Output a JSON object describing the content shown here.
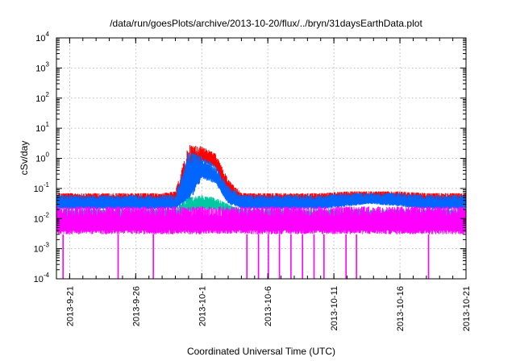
{
  "chart_data": {
    "type": "line",
    "title": "/data/run/goesPlots/archive/2013-10-20/flux/../bryn/31daysEarthData.plot",
    "xlabel": "Coordinated Universal Time (UTC)",
    "ylabel": "cSv/day",
    "yscale": "log",
    "ylim": [
      0.0001,
      10000
    ],
    "xlim": [
      "2013-09-20",
      "2013-10-21"
    ],
    "grid": true,
    "legend": "none",
    "y_ticks": [
      {
        "base": "10",
        "exp": "-4"
      },
      {
        "base": "10",
        "exp": "-3"
      },
      {
        "base": "10",
        "exp": "-2"
      },
      {
        "base": "10",
        "exp": "-1"
      },
      {
        "base": "10",
        "exp": "0"
      },
      {
        "base": "10",
        "exp": "1"
      },
      {
        "base": "10",
        "exp": "2"
      },
      {
        "base": "10",
        "exp": "3"
      },
      {
        "base": "10",
        "exp": "4"
      }
    ],
    "x_ticks": [
      {
        "label": "2013-9-21",
        "date": "2013-09-21"
      },
      {
        "label": "2013-9-26",
        "date": "2013-09-26"
      },
      {
        "label": "2013-10-1",
        "date": "2013-10-01"
      },
      {
        "label": "2013-10-6",
        "date": "2013-10-06"
      },
      {
        "label": "2013-10-11",
        "date": "2013-10-11"
      },
      {
        "label": "2013-10-16",
        "date": "2013-10-16"
      },
      {
        "label": "2013-10-21",
        "date": "2013-10-21"
      }
    ],
    "series": [
      {
        "color": "#ff0000",
        "x": [
          "2013-09-20",
          "2013-09-22",
          "2013-09-24",
          "2013-09-26",
          "2013-09-28",
          "2013-09-29",
          "2013-09-30",
          "2013-10-01",
          "2013-10-02",
          "2013-10-03",
          "2013-10-04",
          "2013-10-06",
          "2013-10-08",
          "2013-10-10",
          "2013-10-12",
          "2013-10-14",
          "2013-10-16",
          "2013-10-18",
          "2013-10-20",
          "2013-10-21"
        ],
        "y_low": [
          0.03,
          0.03,
          0.03,
          0.03,
          0.03,
          0.03,
          0.05,
          0.8,
          0.5,
          0.05,
          0.03,
          0.03,
          0.03,
          0.03,
          0.035,
          0.04,
          0.035,
          0.03,
          0.03,
          0.03
        ],
        "y_high": [
          0.07,
          0.07,
          0.07,
          0.07,
          0.07,
          0.08,
          2.8,
          2.5,
          1.5,
          0.2,
          0.07,
          0.07,
          0.07,
          0.07,
          0.08,
          0.08,
          0.08,
          0.07,
          0.07,
          0.07
        ]
      },
      {
        "color": "#0066ff",
        "x": [
          "2013-09-20",
          "2013-09-22",
          "2013-09-24",
          "2013-09-26",
          "2013-09-28",
          "2013-09-29",
          "2013-09-30",
          "2013-10-01",
          "2013-10-02",
          "2013-10-03",
          "2013-10-04",
          "2013-10-06",
          "2013-10-08",
          "2013-10-10",
          "2013-10-12",
          "2013-10-14",
          "2013-10-16",
          "2013-10-18",
          "2013-10-20",
          "2013-10-21"
        ],
        "y_low": [
          0.02,
          0.02,
          0.02,
          0.02,
          0.02,
          0.02,
          0.03,
          0.2,
          0.15,
          0.03,
          0.02,
          0.02,
          0.02,
          0.02,
          0.025,
          0.03,
          0.025,
          0.02,
          0.02,
          0.02
        ],
        "y_high": [
          0.06,
          0.06,
          0.06,
          0.06,
          0.06,
          0.06,
          1.6,
          1.2,
          0.6,
          0.12,
          0.06,
          0.06,
          0.06,
          0.06,
          0.07,
          0.07,
          0.07,
          0.06,
          0.06,
          0.06
        ]
      },
      {
        "color": "#00c8a0",
        "x": [
          "2013-09-20",
          "2013-09-25",
          "2013-09-29",
          "2013-09-30",
          "2013-10-01",
          "2013-10-02",
          "2013-10-03",
          "2013-10-04",
          "2013-10-10",
          "2013-10-15",
          "2013-10-21"
        ],
        "y_low": [
          0.01,
          0.01,
          0.01,
          0.015,
          0.02,
          0.02,
          0.015,
          0.01,
          0.01,
          0.01,
          0.01
        ],
        "y_high": [
          0.02,
          0.02,
          0.02,
          0.05,
          0.06,
          0.05,
          0.03,
          0.02,
          0.02,
          0.02,
          0.02
        ]
      },
      {
        "color": "#ff00ff",
        "x": [
          "2013-09-20",
          "2013-09-25",
          "2013-09-30",
          "2013-10-05",
          "2013-10-10",
          "2013-10-15",
          "2013-10-21"
        ],
        "y_low": [
          0.003,
          0.003,
          0.003,
          0.003,
          0.003,
          0.003,
          0.003
        ],
        "y_high": [
          0.025,
          0.025,
          0.025,
          0.025,
          0.025,
          0.025,
          0.025
        ],
        "dropouts": [
          "2013-09-20 12:00",
          "2013-09-24 16:00",
          "2013-09-27 08:00",
          "2013-10-04 10:00",
          "2013-10-05 07:00",
          "2013-10-06 01:00",
          "2013-10-06 21:00",
          "2013-10-07 18:00",
          "2013-10-08 15:00",
          "2013-10-09 12:00",
          "2013-10-10 06:00",
          "2013-10-11 22:00",
          "2013-10-12 17:00",
          "2013-10-18 04:00"
        ]
      }
    ]
  }
}
